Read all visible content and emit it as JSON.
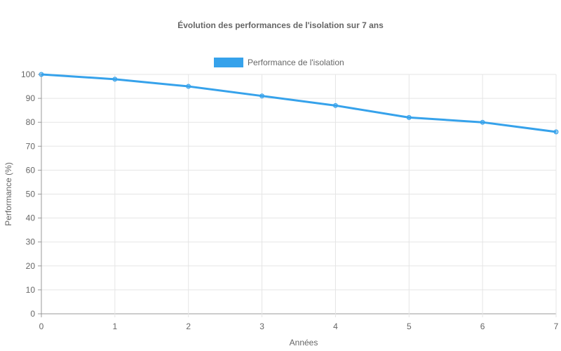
{
  "chart_data": {
    "type": "line",
    "title": "Évolution des performances de l'isolation sur 7 ans",
    "xlabel": "Années",
    "ylabel": "Performance (%)",
    "categories": [
      0,
      1,
      2,
      3,
      4,
      5,
      6,
      7
    ],
    "series": [
      {
        "name": "Performance de l'isolation",
        "values": [
          100,
          98,
          95,
          91,
          87,
          82,
          80,
          76
        ],
        "color": "#36a2eb"
      }
    ],
    "ylim": [
      0,
      100
    ],
    "yticks": [
      0,
      10,
      20,
      30,
      40,
      50,
      60,
      70,
      80,
      90,
      100
    ],
    "grid": true,
    "legend_position": "top"
  }
}
